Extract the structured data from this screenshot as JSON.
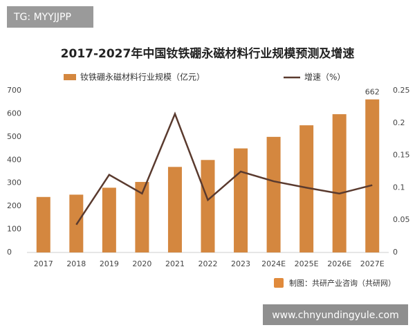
{
  "tag": "TG: MYYJJPP",
  "source": "制图：共研产业咨询（共研网）",
  "website": "www.chnyundingyule.com",
  "chart_data": {
    "type": "bar-line",
    "title": "2017-2027年中国钕铁硼永磁材料行业规模预测及增速",
    "categories": [
      "2017",
      "2018",
      "2019",
      "2020",
      "2021",
      "2022",
      "2023",
      "2024E",
      "2025E",
      "2026E",
      "2027E"
    ],
    "series": [
      {
        "name": "钕铁硼永磁材料行业规模（亿元）",
        "type": "bar",
        "color": "#d4873f",
        "values": [
          240,
          250,
          280,
          305,
          370,
          400,
          450,
          500,
          550,
          598,
          662
        ],
        "value_labels": [
          null,
          null,
          null,
          null,
          null,
          null,
          null,
          null,
          null,
          null,
          "662"
        ]
      },
      {
        "name": "增速（%）",
        "type": "line",
        "axis": "y2",
        "color": "#5a3a2e",
        "values": [
          null,
          0.043,
          0.12,
          0.091,
          0.214,
          0.081,
          0.125,
          0.11,
          0.1,
          0.091,
          0.104
        ]
      }
    ],
    "ylim": [
      0,
      700
    ],
    "yticks": [
      0,
      100,
      200,
      300,
      400,
      500,
      600,
      700
    ],
    "y2lim": [
      0,
      0.25
    ],
    "y2ticks": [
      0,
      0.05,
      0.1,
      0.15,
      0.2,
      0.25
    ],
    "grid": false,
    "legend": "top"
  }
}
